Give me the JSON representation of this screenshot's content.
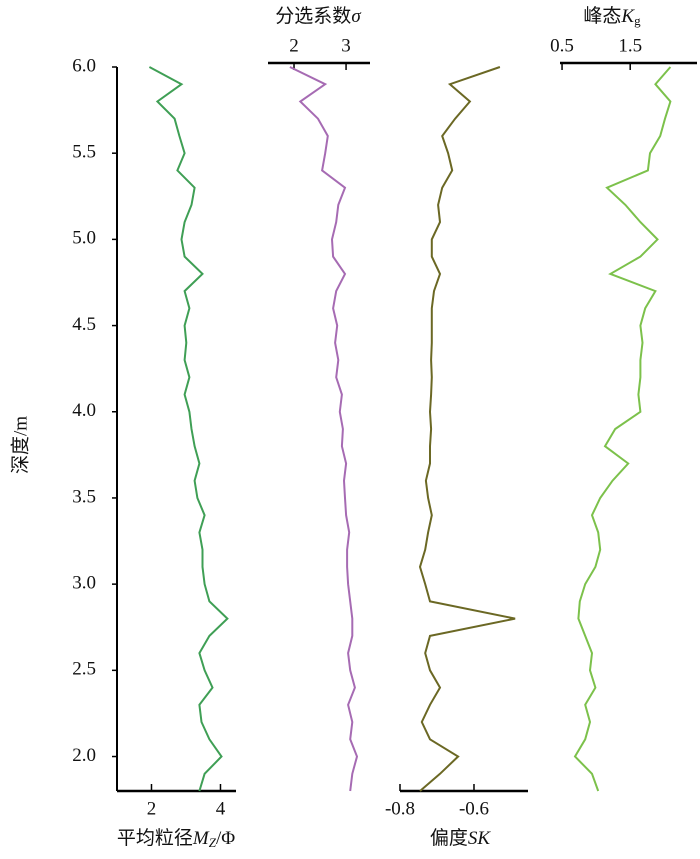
{
  "chart_data": {
    "type": "line",
    "ylabel": "深度/m",
    "ylim": [
      1.8,
      6.0
    ],
    "yticks": [
      {
        "value": 2,
        "label": "2.0"
      },
      {
        "value": 2.5,
        "label": "2.5"
      },
      {
        "value": 3,
        "label": "3.0"
      },
      {
        "value": 3.5,
        "label": "3.5"
      },
      {
        "value": 4,
        "label": "4.0"
      },
      {
        "value": 4.5,
        "label": "4.5"
      },
      {
        "value": 5,
        "label": "5.0"
      },
      {
        "value": 5.5,
        "label": "5.5"
      },
      {
        "value": 6,
        "label": "6.0"
      }
    ],
    "y": [
      1.8,
      1.9,
      2.0,
      2.1,
      2.2,
      2.3,
      2.4,
      2.5,
      2.6,
      2.7,
      2.8,
      2.9,
      3.0,
      3.1,
      3.2,
      3.3,
      3.4,
      3.5,
      3.6,
      3.7,
      3.8,
      3.9,
      4.0,
      4.1,
      4.2,
      4.3,
      4.4,
      4.5,
      4.6,
      4.7,
      4.8,
      4.9,
      5.0,
      5.1,
      5.2,
      5.3,
      5.4,
      5.5,
      5.6,
      5.7,
      5.8,
      5.9,
      6.0
    ],
    "series": [
      {
        "name": [
          "平均粒径",
          "M",
          "Z",
          "/Φ"
        ],
        "color": "#3f9f55",
        "axis_side": "bottom",
        "xlim": [
          1,
          4.45
        ],
        "xticks": [
          2,
          4
        ],
        "values": [
          3.39,
          3.54,
          4.03,
          3.68,
          3.45,
          3.39,
          3.77,
          3.54,
          3.39,
          3.68,
          4.2,
          3.68,
          3.54,
          3.48,
          3.48,
          3.39,
          3.54,
          3.33,
          3.25,
          3.39,
          3.25,
          3.16,
          3.1,
          2.96,
          3.1,
          2.96,
          3.01,
          2.96,
          3.1,
          2.96,
          3.48,
          2.96,
          2.87,
          2.96,
          3.16,
          3.25,
          2.75,
          2.96,
          2.81,
          2.67,
          2.17,
          2.87,
          1.94
        ]
      },
      {
        "name": [
          "分选系数",
          "σ"
        ],
        "color": "#a66bb3",
        "axis_side": "top",
        "xlim": [
          1.5,
          3.46
        ],
        "xticks": [
          2,
          3
        ],
        "values": [
          3.08,
          3.12,
          3.21,
          3.08,
          3.12,
          3.04,
          3.17,
          3.08,
          3.04,
          3.12,
          3.12,
          3.08,
          3.04,
          3.02,
          3.02,
          3.06,
          3.0,
          2.98,
          2.96,
          3.0,
          2.92,
          2.94,
          2.88,
          2.92,
          2.81,
          2.85,
          2.79,
          2.83,
          2.75,
          2.81,
          2.98,
          2.75,
          2.73,
          2.81,
          2.85,
          2.98,
          2.54,
          2.6,
          2.65,
          2.46,
          2.12,
          2.6,
          1.92
        ]
      },
      {
        "name": [
          "偏度",
          "SK"
        ],
        "color": "#6b6824",
        "axis_side": "bottom",
        "xlim": [
          -0.8,
          -0.454
        ],
        "xticks": [
          -0.8,
          -0.6
        ],
        "values": [
          -0.746,
          -0.692,
          -0.643,
          -0.719,
          -0.741,
          -0.719,
          -0.692,
          -0.719,
          -0.732,
          -0.719,
          -0.489,
          -0.719,
          -0.732,
          -0.746,
          -0.732,
          -0.724,
          -0.714,
          -0.724,
          -0.73,
          -0.719,
          -0.719,
          -0.716,
          -0.719,
          -0.716,
          -0.714,
          -0.716,
          -0.714,
          -0.714,
          -0.714,
          -0.708,
          -0.692,
          -0.714,
          -0.714,
          -0.692,
          -0.697,
          -0.686,
          -0.659,
          -0.67,
          -0.686,
          -0.651,
          -0.611,
          -0.665,
          -0.53
        ]
      },
      {
        "name": [
          "峰态",
          "K",
          "g"
        ],
        "color": "#7cc14b",
        "axis_side": "top",
        "xlim": [
          0.47,
          2.48
        ],
        "xticks": [
          0.5,
          1.5
        ],
        "values": [
          1.03,
          0.94,
          0.69,
          0.84,
          0.91,
          0.84,
          0.99,
          0.91,
          0.94,
          0.84,
          0.74,
          0.76,
          0.84,
          0.99,
          1.06,
          1.03,
          0.94,
          1.06,
          1.24,
          1.47,
          1.13,
          1.28,
          1.65,
          1.62,
          1.65,
          1.65,
          1.68,
          1.65,
          1.72,
          1.87,
          1.21,
          1.65,
          1.9,
          1.65,
          1.43,
          1.16,
          1.76,
          1.79,
          1.94,
          2.01,
          2.09,
          1.87,
          2.09
        ]
      }
    ]
  }
}
